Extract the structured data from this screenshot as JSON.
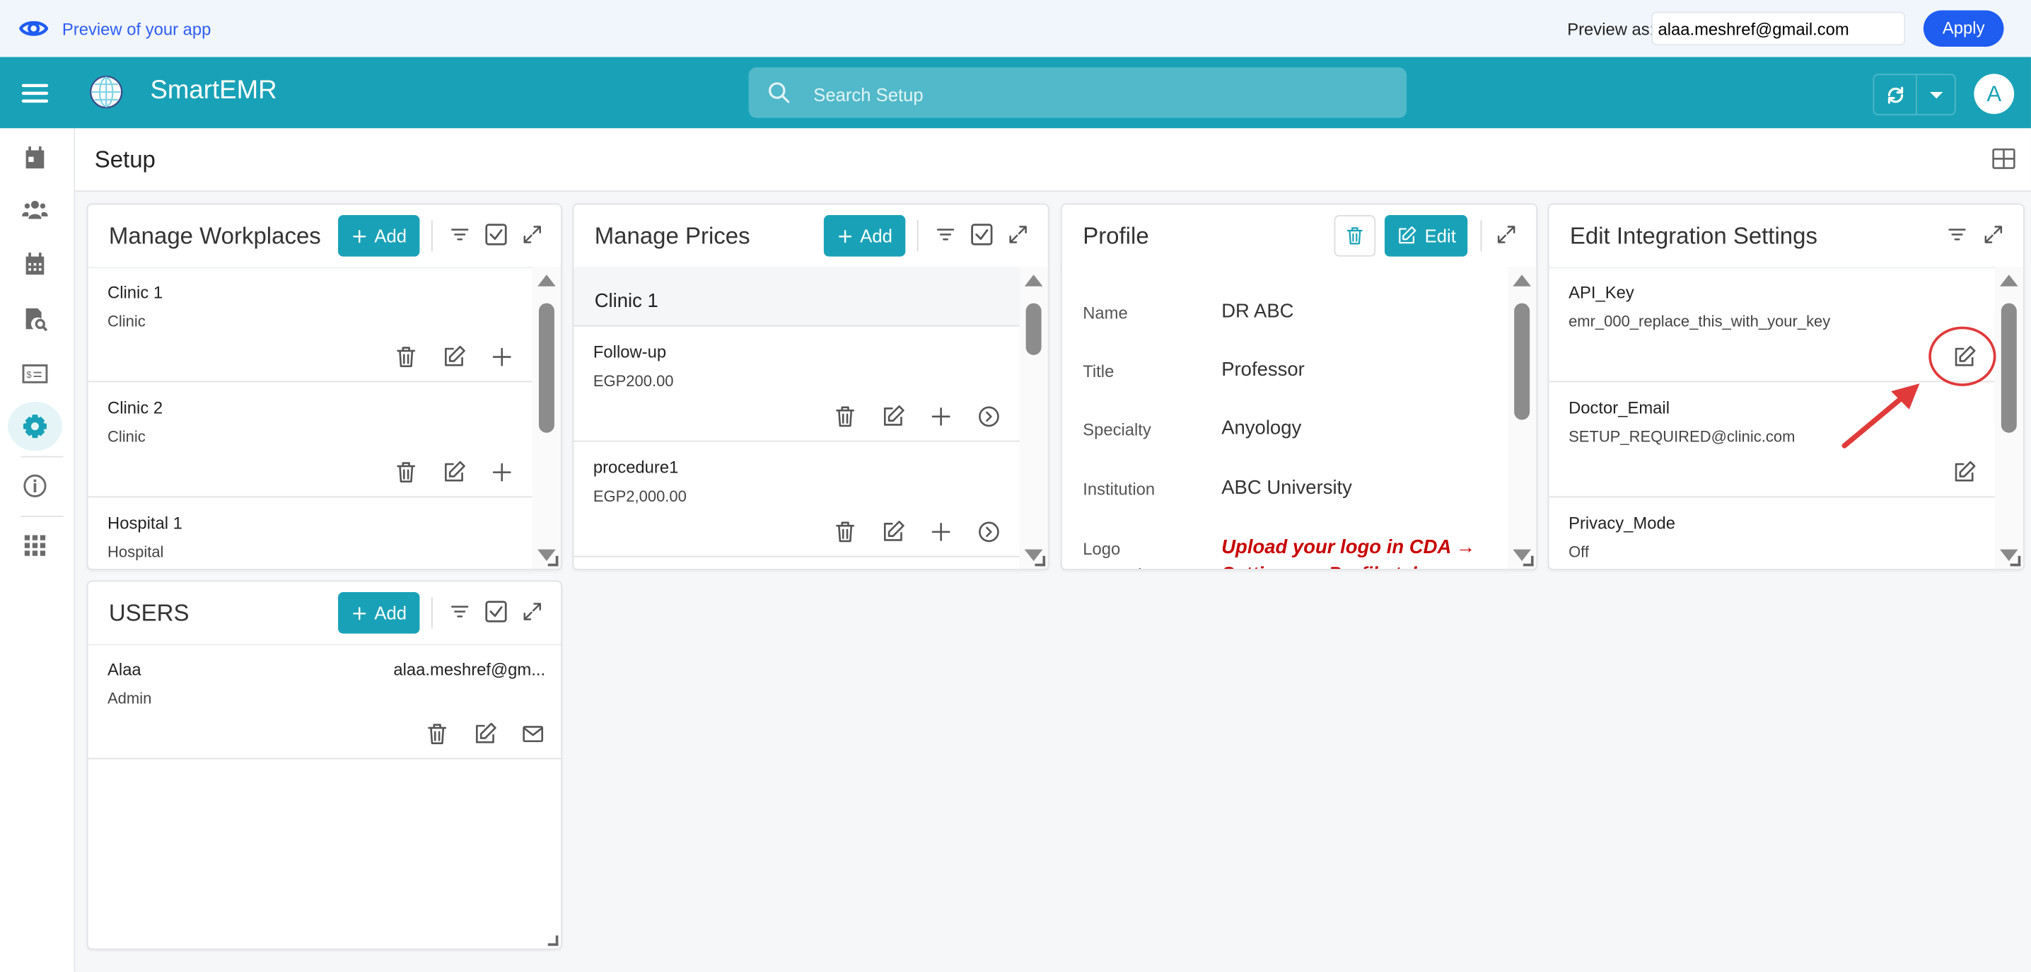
{
  "preview_bar": {
    "label": "Preview of your app",
    "preview_as_label": "Preview as:",
    "preview_as_value": "alaa.meshref@gmail.com",
    "apply_label": "Apply",
    "accent": "#1f5cf0"
  },
  "header": {
    "brand": "SmartEMR",
    "search_placeholder": "Search Setup",
    "avatar_initial": "A",
    "color": "#19a2b7"
  },
  "sidebar": {
    "items": [
      {
        "icon": "calendar-day-icon"
      },
      {
        "icon": "users-icon"
      },
      {
        "icon": "calendar-grid-icon"
      },
      {
        "icon": "file-search-icon"
      },
      {
        "icon": "billing-icon"
      },
      {
        "icon": "gear-icon",
        "active": true
      },
      {
        "icon": "info-icon"
      },
      {
        "icon": "apps-grid-icon"
      }
    ]
  },
  "page": {
    "title": "Setup"
  },
  "workplaces": {
    "title": "Manage Workplaces",
    "add_label": "Add",
    "items": [
      {
        "name": "Clinic 1",
        "type": "Clinic"
      },
      {
        "name": "Clinic 2",
        "type": "Clinic"
      },
      {
        "name": "Hospital 1",
        "type": "Hospital"
      }
    ]
  },
  "prices": {
    "title": "Manage Prices",
    "add_label": "Add",
    "group": "Clinic 1",
    "items": [
      {
        "name": "Follow-up",
        "price": "EGP200.00"
      },
      {
        "name": "procedure1",
        "price": "EGP2,000.00"
      }
    ]
  },
  "profile": {
    "title": "Profile",
    "edit_label": "Edit",
    "fields": [
      {
        "label": "Name",
        "value": "DR ABC"
      },
      {
        "label": "Title",
        "value": "Professor"
      },
      {
        "label": "Specialty",
        "value": "Anyology"
      },
      {
        "label": "Institution",
        "value": "ABC University"
      },
      {
        "label": "Logo Instructions",
        "value": "Upload your logo in CDA → Settings → Profile tab"
      }
    ]
  },
  "integration": {
    "title": "Edit Integration Settings",
    "items": [
      {
        "key": "API_Key",
        "value": "emr_000_replace_this_with_your_key"
      },
      {
        "key": "Doctor_Email",
        "value": "SETUP_REQUIRED@clinic.com"
      },
      {
        "key": "Privacy_Mode",
        "value": "Off"
      }
    ]
  },
  "users": {
    "title": "USERS",
    "add_label": "Add",
    "items": [
      {
        "name": "Alaa",
        "email": "alaa.meshref@gm...",
        "role": "Admin"
      }
    ]
  }
}
